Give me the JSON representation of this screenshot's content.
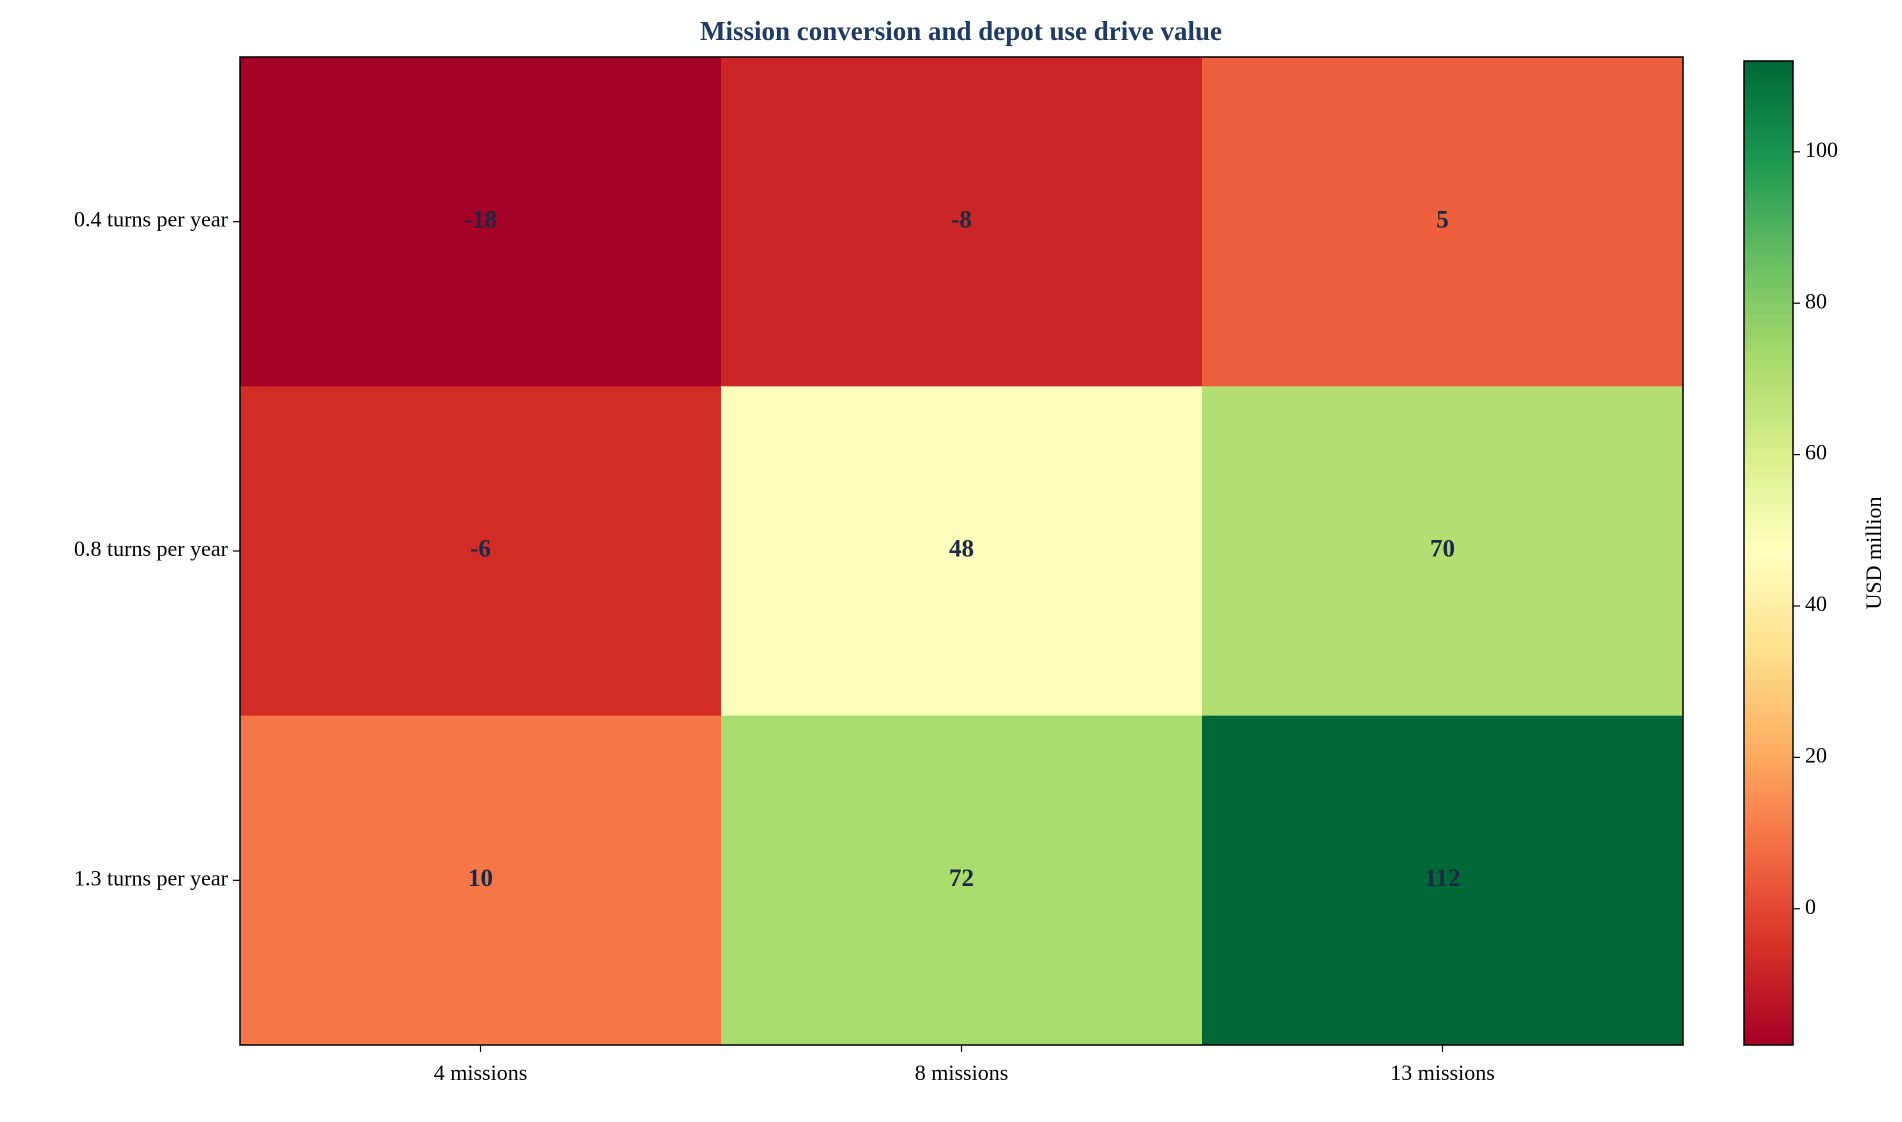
{
  "chart_data": {
    "type": "heatmap",
    "title": "Mission conversion and depot use drive value",
    "x_categories": [
      "4 missions",
      "8 missions",
      "13 missions"
    ],
    "y_categories": [
      "0.4 turns per year",
      "0.8 turns per year",
      "1.3 turns per year"
    ],
    "values": [
      [
        -18,
        -8,
        5
      ],
      [
        -6,
        48,
        70
      ],
      [
        10,
        72,
        112
      ]
    ],
    "colormap": "RdYlGn",
    "colorbar_label": "USD million",
    "clim": [
      -18,
      112
    ],
    "cticks": [
      0,
      20,
      40,
      60,
      80,
      100
    ]
  }
}
